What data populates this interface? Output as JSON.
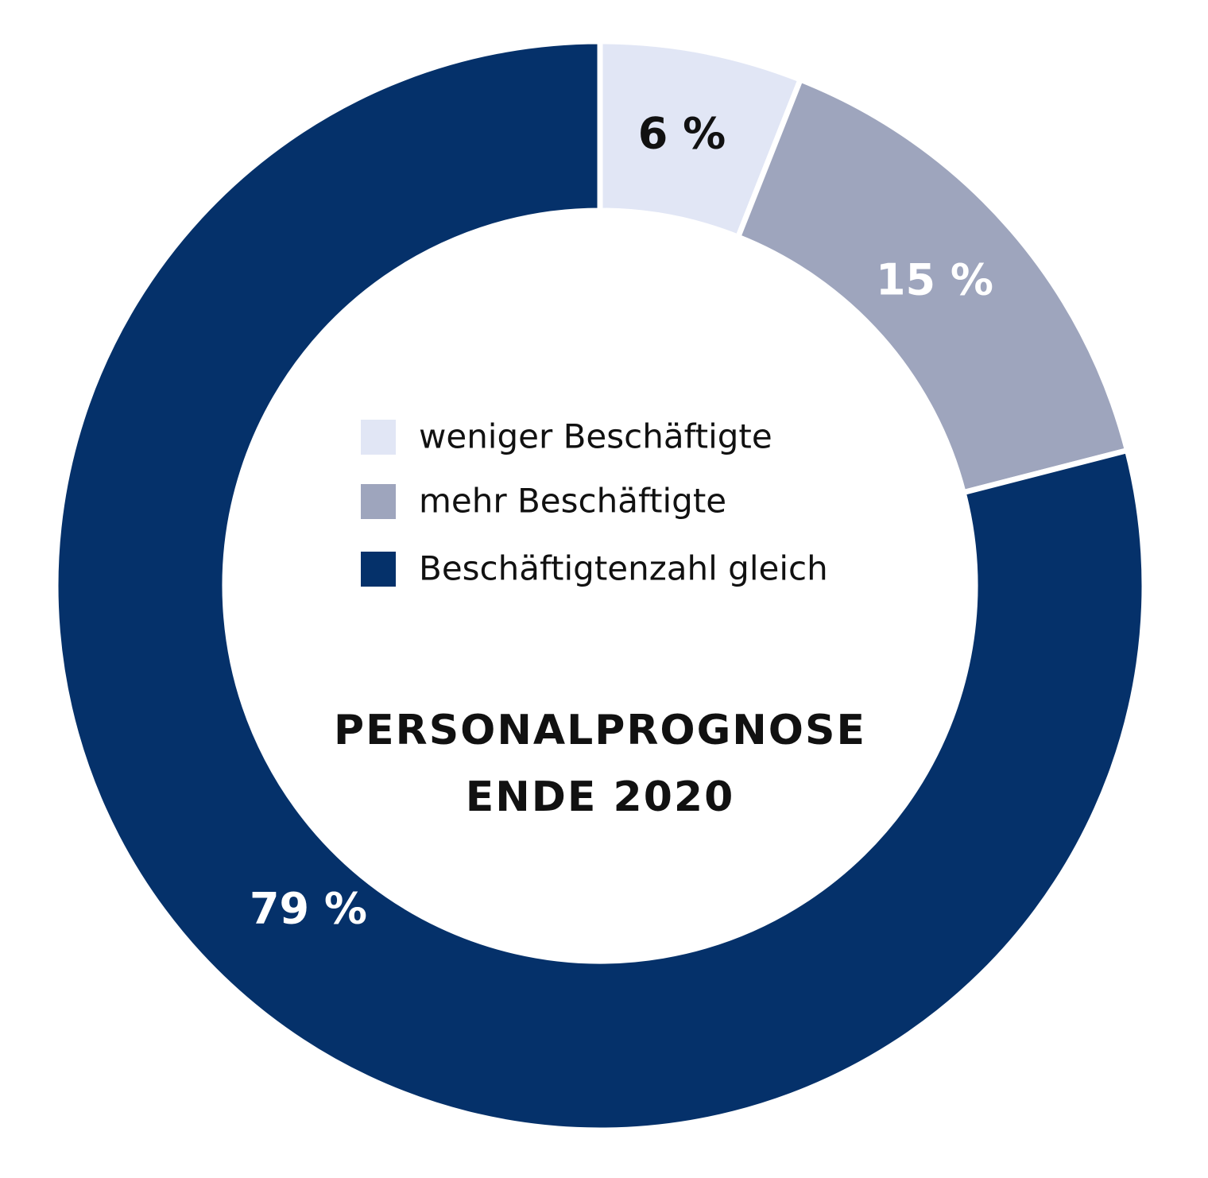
{
  "chart_data": {
    "type": "pie",
    "variant": "donut",
    "title": "PERSONALPROGNOSE ENDE 2020",
    "title_lines": [
      "PERSONALPROGNOSE",
      "ENDE 2020"
    ],
    "unit": "%",
    "legend_position": "center",
    "slices": [
      {
        "name": "weniger Beschäftigte",
        "value": 6,
        "label": "6 %",
        "color": "#e1e6f5",
        "label_color": "#111111"
      },
      {
        "name": "mehr Beschäftigte",
        "value": 15,
        "label": "15 %",
        "color": "#9ea5bd",
        "label_color": "#ffffff"
      },
      {
        "name": "Beschäftigtenzahl gleich",
        "value": 79,
        "label": "79 %",
        "color": "#05316a",
        "label_color": "#ffffff"
      }
    ]
  }
}
